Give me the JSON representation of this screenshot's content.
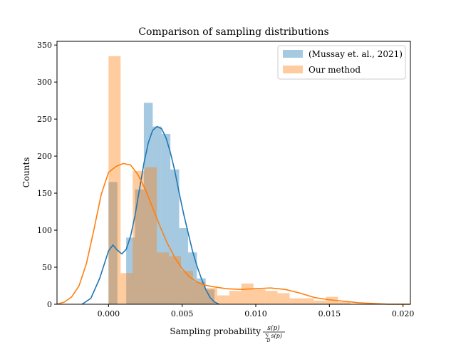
{
  "chart_data": {
    "type": "bar",
    "title": "Comparison of sampling distributions",
    "xlabel": "Sampling probability",
    "xlabel_fraction": {
      "numerator": "s(p)",
      "denominator": "∑ s(p)",
      "sub": "D"
    },
    "ylabel": "Counts",
    "xlim": [
      -0.0035,
      0.0205
    ],
    "ylim": [
      0,
      355
    ],
    "xticks": [
      0.0,
      0.005,
      0.01,
      0.015,
      0.02
    ],
    "xtick_labels": [
      "0.000",
      "0.005",
      "0.010",
      "0.015",
      "0.020"
    ],
    "yticks": [
      0,
      50,
      100,
      150,
      200,
      250,
      300,
      350
    ],
    "ytick_labels": [
      "0",
      "50",
      "100",
      "150",
      "200",
      "250",
      "300",
      "350"
    ],
    "legend_position": "top-right",
    "series": [
      {
        "name": "(Mussay et. al., 2021)",
        "kind": "histogram",
        "color": "#1f77b4",
        "bin_edges": [
          0.0,
          0.0006,
          0.0012,
          0.0018,
          0.0024,
          0.003,
          0.0036,
          0.0042,
          0.0048,
          0.0054,
          0.006,
          0.0066,
          0.0072
        ],
        "counts": [
          165,
          0,
          90,
          155,
          272,
          240,
          230,
          182,
          103,
          70,
          35,
          20
        ]
      },
      {
        "name": "Our method",
        "kind": "histogram",
        "color": "#ff7f0e",
        "bin_edges": [
          0.0,
          0.00082,
          0.00164,
          0.00246,
          0.00328,
          0.0041,
          0.00492,
          0.00574,
          0.00656,
          0.00738,
          0.0082,
          0.00902,
          0.00984,
          0.01066,
          0.01148,
          0.0123,
          0.01312,
          0.01394,
          0.01476,
          0.01558,
          0.0164
        ],
        "counts": [
          335,
          42,
          180,
          185,
          70,
          65,
          45,
          30,
          22,
          12,
          18,
          28,
          20,
          18,
          15,
          8,
          8,
          5,
          10,
          3
        ]
      }
    ],
    "kde": [
      {
        "name": "(Mussay et. al., 2021)",
        "color": "#1f77b4",
        "points": [
          [
            -0.0018,
            0
          ],
          [
            -0.0012,
            8
          ],
          [
            -0.0006,
            35
          ],
          [
            0.0,
            72
          ],
          [
            0.0003,
            80
          ],
          [
            0.0006,
            73
          ],
          [
            0.0009,
            68
          ],
          [
            0.0012,
            74
          ],
          [
            0.0015,
            92
          ],
          [
            0.0018,
            120
          ],
          [
            0.0021,
            155
          ],
          [
            0.0024,
            190
          ],
          [
            0.0027,
            218
          ],
          [
            0.003,
            235
          ],
          [
            0.0033,
            240
          ],
          [
            0.0036,
            237
          ],
          [
            0.0039,
            225
          ],
          [
            0.0042,
            205
          ],
          [
            0.0045,
            180
          ],
          [
            0.0048,
            150
          ],
          [
            0.0051,
            122
          ],
          [
            0.0054,
            97
          ],
          [
            0.0057,
            72
          ],
          [
            0.006,
            52
          ],
          [
            0.0063,
            35
          ],
          [
            0.0066,
            20
          ],
          [
            0.0069,
            9
          ],
          [
            0.0072,
            3
          ],
          [
            0.0075,
            0
          ]
        ]
      },
      {
        "name": "Our method",
        "color": "#ff7f0e",
        "points": [
          [
            -0.0035,
            0
          ],
          [
            -0.003,
            3
          ],
          [
            -0.0025,
            10
          ],
          [
            -0.002,
            25
          ],
          [
            -0.0015,
            55
          ],
          [
            -0.001,
            100
          ],
          [
            -0.0005,
            148
          ],
          [
            0.0,
            178
          ],
          [
            0.0005,
            186
          ],
          [
            0.001,
            190
          ],
          [
            0.0015,
            188
          ],
          [
            0.002,
            175
          ],
          [
            0.0025,
            155
          ],
          [
            0.003,
            130
          ],
          [
            0.0035,
            105
          ],
          [
            0.004,
            82
          ],
          [
            0.0045,
            63
          ],
          [
            0.005,
            48
          ],
          [
            0.0055,
            37
          ],
          [
            0.006,
            30
          ],
          [
            0.0065,
            26
          ],
          [
            0.007,
            24
          ],
          [
            0.008,
            21
          ],
          [
            0.009,
            20
          ],
          [
            0.01,
            21
          ],
          [
            0.011,
            22
          ],
          [
            0.012,
            20
          ],
          [
            0.013,
            15
          ],
          [
            0.014,
            9
          ],
          [
            0.015,
            6
          ],
          [
            0.016,
            4
          ],
          [
            0.017,
            2
          ],
          [
            0.018,
            1
          ],
          [
            0.019,
            0
          ],
          [
            0.0205,
            0
          ]
        ]
      }
    ]
  }
}
